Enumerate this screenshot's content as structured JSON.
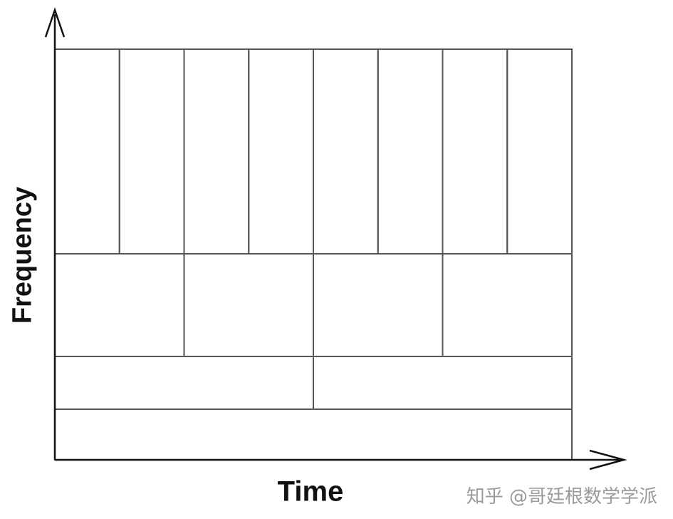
{
  "axes": {
    "y_label": "Frequency",
    "x_label": "Time"
  },
  "tiling": {
    "description": "time-frequency tiling",
    "rows_top_to_bottom": [
      {
        "band": 4,
        "time_divisions": 8
      },
      {
        "band": 3,
        "time_divisions": 4
      },
      {
        "band": 2,
        "time_divisions": 2
      },
      {
        "band": 1,
        "time_divisions": 1
      }
    ]
  },
  "watermark": {
    "text": "知乎 @哥廷根数学学派"
  },
  "colors": {
    "line": "#555555",
    "axis": "#111111",
    "label": "#111111",
    "watermark": "#9a9a9a"
  }
}
